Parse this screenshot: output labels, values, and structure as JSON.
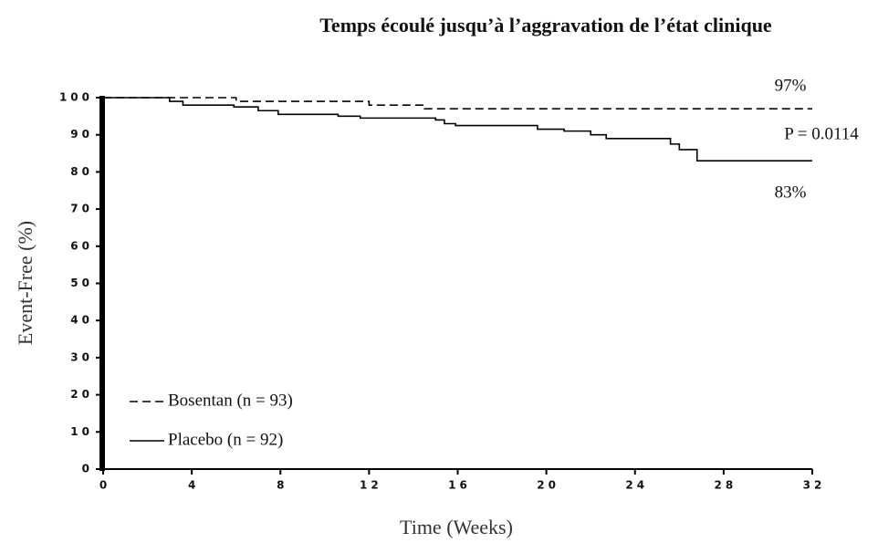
{
  "chart_data": {
    "type": "step",
    "title": "Temps écoulé jusqu’à l’aggravation de l’état clinique",
    "x_label": "Time (Weeks)",
    "y_label": "Event-Free (%)",
    "xlim": [
      0,
      32
    ],
    "xticks": [
      0,
      4,
      8,
      12,
      16,
      20,
      24,
      28,
      32
    ],
    "ylim": [
      0,
      100
    ],
    "yticks": [
      0,
      10,
      20,
      30,
      40,
      50,
      60,
      70,
      80,
      90,
      100
    ],
    "series": [
      {
        "name": "Bosentan (n = 93)",
        "color": "#000000",
        "dash": true,
        "x": [
          0,
          6,
          12,
          14.5,
          32
        ],
        "values": [
          100,
          99,
          98,
          97,
          97
        ]
      },
      {
        "name": "Placebo (n = 92)",
        "color": "#000000",
        "dash": false,
        "x": [
          0,
          3,
          3.6,
          5.9,
          7,
          7.9,
          10.6,
          11.6,
          15,
          15.4,
          15.9,
          19.6,
          20.8,
          22,
          22.7,
          25.6,
          26,
          26.8,
          32
        ],
        "values": [
          100,
          99,
          98,
          97.5,
          96.5,
          95.5,
          95,
          94.5,
          94,
          93,
          92.5,
          91.5,
          91,
          90,
          89,
          87.5,
          86,
          83,
          83
        ]
      }
    ],
    "annotations": [
      "97%",
      "P =  0.0114",
      "83%"
    ]
  }
}
